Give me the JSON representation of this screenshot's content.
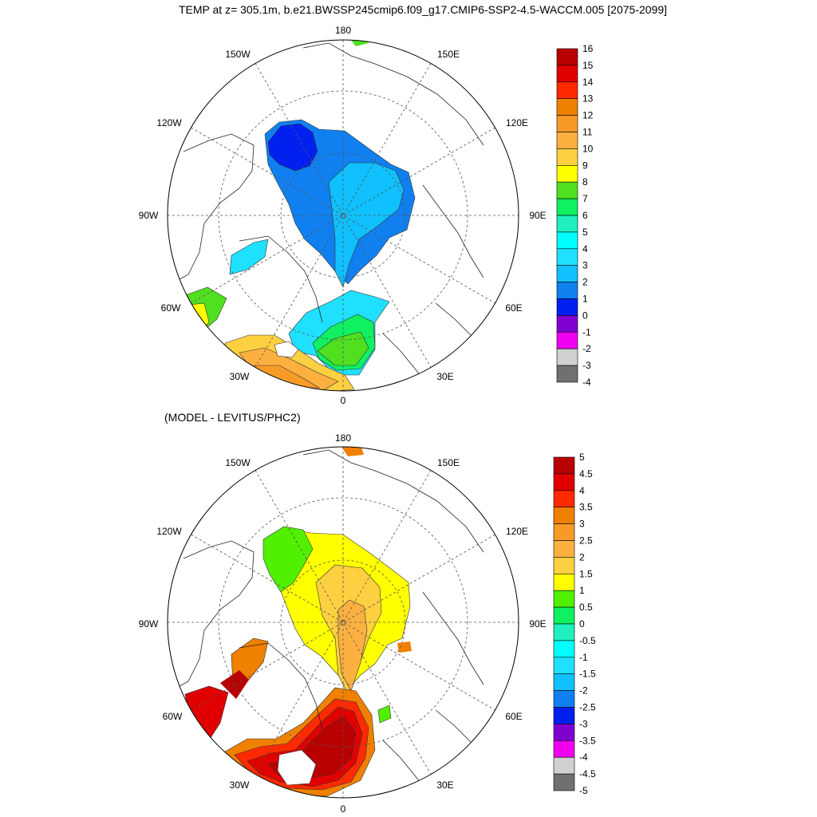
{
  "title": "TEMP at z= 305.1m, b.e21.BWSSP245cmip6.f09_g17.CMIP6-SSP2-4.5-WACCM.005 [2075-2099]",
  "panels": [
    {
      "id": "top",
      "subtitle": "",
      "lon_labels": {
        "l180": "180",
        "l150W": "150W",
        "l150E": "150E",
        "l120W": "120W",
        "l120E": "120E",
        "l90W": "90W",
        "l90E": "90E",
        "l60W": "60W",
        "l60E": "60E",
        "l30W": "30W",
        "l30E": "30E",
        "l0": "0"
      },
      "colorbar": {
        "levels": [
          "16",
          "15",
          "14",
          "13",
          "12",
          "11",
          "10",
          "9",
          "8",
          "7",
          "6",
          "5",
          "4",
          "3",
          "2",
          "1",
          "0",
          "-1",
          "-2",
          "-3",
          "-4"
        ],
        "colors": [
          "#b80000",
          "#e00000",
          "#ff2a00",
          "#f08000",
          "#f89a28",
          "#fcb040",
          "#fcd040",
          "#ffff00",
          "#50e020",
          "#10f060",
          "#20f0c0",
          "#00ffff",
          "#20e0ff",
          "#10c0ff",
          "#1080f0",
          "#0020f0",
          "#8000d0",
          "#f000f0",
          "#d0d0d0",
          "#707070"
        ]
      }
    },
    {
      "id": "bottom",
      "subtitle": "(MODEL - LEVITUS/PHC2)",
      "lon_labels": {
        "l180": "180",
        "l150W": "150W",
        "l150E": "150E",
        "l120W": "120W",
        "l120E": "120E",
        "l90W": "90W",
        "l90E": "90E",
        "l60W": "60W",
        "l60E": "60E",
        "l30W": "30W",
        "l30E": "30E",
        "l0": "0"
      },
      "colorbar": {
        "levels": [
          "5",
          "4.5",
          "4",
          "3.5",
          "3",
          "2.5",
          "2",
          "1.5",
          "1",
          "0.5",
          "0",
          "-0.5",
          "-1",
          "-1.5",
          "-2",
          "-2.5",
          "-3",
          "-3.5",
          "-4",
          "-4.5",
          "-5"
        ],
        "colors": [
          "#b80000",
          "#e00000",
          "#ff2a00",
          "#f08000",
          "#f89a28",
          "#fcb040",
          "#fcd040",
          "#ffff00",
          "#50f000",
          "#10f060",
          "#20f0c0",
          "#00ffff",
          "#20e0ff",
          "#10c0ff",
          "#1080f0",
          "#0020f0",
          "#8000d0",
          "#f000f0",
          "#d0d0d0",
          "#707070"
        ]
      }
    }
  ]
}
